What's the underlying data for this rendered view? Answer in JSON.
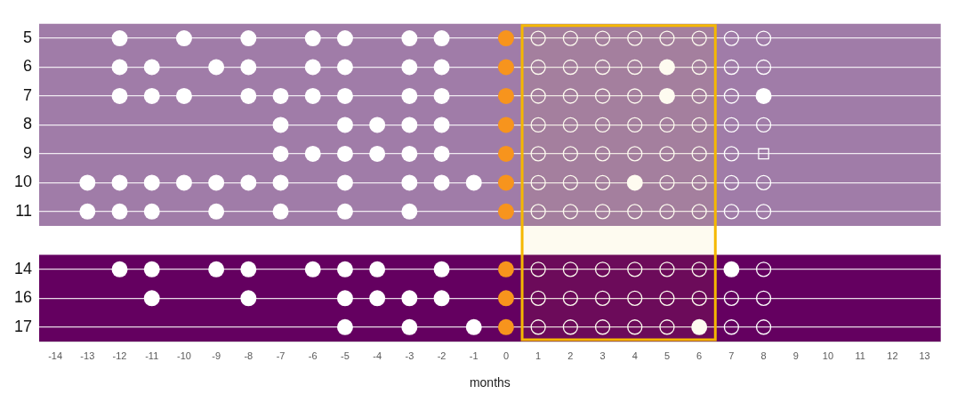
{
  "chart_data": {
    "type": "scatter",
    "orientation": "horizontal",
    "xlabel": "months",
    "categories": [
      "5",
      "6",
      "7",
      "8",
      "9",
      "10",
      "11",
      null,
      "14",
      "16",
      "17"
    ],
    "xlim": [
      -14.5,
      13.5
    ],
    "xticks": [
      -14,
      -13,
      -12,
      -11,
      -10,
      -9,
      -8,
      -7,
      -6,
      -5,
      -4,
      -3,
      -2,
      -1,
      0,
      1,
      2,
      3,
      4,
      5,
      6,
      7,
      8,
      9,
      10,
      11,
      12,
      13
    ],
    "grid": "y",
    "legend": false,
    "bands": [
      {
        "axis": "y",
        "from": "5",
        "to": "11",
        "color": "#a07ca8"
      },
      {
        "axis": "y",
        "from": "14",
        "to": "17",
        "color": "#640060"
      },
      {
        "axis": "x",
        "from": 0.5,
        "to": 6.5,
        "color": "#f5b800"
      }
    ],
    "series": [
      {
        "color": "#ffffff",
        "marker": "circle",
        "values": [
          -12,
          -12,
          -12,
          -7,
          -7,
          -13,
          -13,
          null,
          -12,
          -11,
          -5
        ]
      },
      {
        "color": "#ffffff",
        "marker": "circle",
        "values": [
          -10,
          -11,
          -11,
          -5,
          -6,
          -12,
          -12,
          null,
          -11,
          -8,
          -3
        ]
      },
      {
        "color": "#ffffff",
        "marker": "circle",
        "values": [
          -8,
          -9,
          -10,
          -4,
          -5,
          -11,
          -11,
          null,
          -9,
          -5,
          -1
        ]
      },
      {
        "color": "#ffffff",
        "marker": "circle",
        "values": [
          -6,
          -8,
          -8,
          -3,
          -4,
          -10,
          -9,
          null,
          -8,
          -4,
          6
        ]
      },
      {
        "color": "#ffffff",
        "marker": "circle",
        "values": [
          -5,
          -6,
          -7,
          -2,
          -3,
          -9,
          -7,
          null,
          -6,
          -3,
          null
        ]
      },
      {
        "color": "#ffffff",
        "marker": "circle",
        "values": [
          -3,
          -5,
          -6,
          null,
          -2,
          -8,
          -5,
          null,
          -5,
          -2,
          null
        ]
      },
      {
        "color": "#ffffff",
        "marker": "circle",
        "values": [
          -2,
          -3,
          -5,
          null,
          null,
          -7,
          -3,
          null,
          -4,
          null,
          null
        ]
      },
      {
        "color": "#ffffff",
        "marker": "circle",
        "values": [
          null,
          -2,
          -3,
          null,
          null,
          -5,
          null,
          null,
          -2,
          null,
          null
        ]
      },
      {
        "color": "#ffffff",
        "marker": "circle",
        "values": [
          null,
          5,
          -2,
          null,
          null,
          -3,
          null,
          null,
          7,
          null,
          null
        ]
      },
      {
        "color": "#ffffff",
        "marker": "circle",
        "values": [
          null,
          null,
          5,
          null,
          null,
          -2,
          null,
          null,
          null,
          null,
          null
        ]
      },
      {
        "color": "#ffffff",
        "marker": "circle",
        "values": [
          null,
          null,
          8,
          null,
          null,
          -1,
          null,
          null,
          null,
          null,
          null
        ]
      },
      {
        "color": "#ffffff",
        "marker": "circle",
        "values": [
          null,
          null,
          null,
          null,
          null,
          4,
          null,
          null,
          null,
          null,
          null
        ]
      },
      {
        "color": "#f7941d",
        "marker": "circle",
        "values": [
          0,
          0,
          0,
          0,
          0,
          0,
          0,
          null,
          0,
          0,
          0
        ]
      },
      {
        "color": "#ffffff",
        "marker": "circle",
        "values": [
          1,
          1,
          1,
          1,
          1,
          1,
          1,
          null,
          1,
          1,
          1
        ]
      },
      {
        "color": "#ffffff",
        "marker": "circle",
        "values": [
          2,
          2,
          2,
          2,
          2,
          2,
          2,
          null,
          2,
          2,
          2
        ]
      },
      {
        "color": "#ffffff",
        "marker": "circle",
        "values": [
          3,
          3,
          3,
          3,
          3,
          3,
          3,
          null,
          3,
          3,
          3
        ]
      },
      {
        "color": "#ffffff",
        "marker": "circle",
        "values": [
          4,
          4,
          4,
          4,
          4,
          5,
          4,
          null,
          4,
          4,
          4
        ]
      },
      {
        "color": "#ffffff",
        "marker": "circle",
        "values": [
          5,
          6,
          6,
          5,
          5,
          6,
          5,
          null,
          5,
          5,
          5
        ]
      },
      {
        "color": "#ffffff",
        "marker": "circle",
        "values": [
          6,
          7,
          7,
          6,
          6,
          7,
          6,
          null,
          6,
          6,
          7
        ]
      },
      {
        "color": "#ffffff",
        "marker": "circle",
        "values": [
          7,
          8,
          null,
          7,
          7,
          8,
          7,
          null,
          8,
          7,
          8
        ]
      },
      {
        "color": "#ffffff",
        "marker": "circle",
        "values": [
          8,
          null,
          null,
          8,
          null,
          null,
          8,
          null,
          null,
          8,
          null
        ]
      },
      {
        "color": "#ffffff",
        "marker": "square",
        "values": [
          null,
          null,
          null,
          null,
          8,
          null,
          null,
          null,
          null,
          null,
          null
        ]
      }
    ]
  }
}
